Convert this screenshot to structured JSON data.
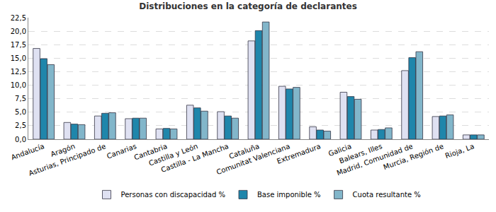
{
  "chart_data": {
    "type": "bar",
    "title": "Distribuciones en la categoría de declarantes",
    "categories": [
      "Andalucía",
      "Aragón",
      "Asturias, Principado de",
      "Canarias",
      "Cantabria",
      "Castilla y León",
      "Castilla - La Mancha",
      "Cataluña",
      "Comunitat Valenciana",
      "Extremadura",
      "Galicia",
      "Balears, Illes",
      "Madrid, Comunidad de",
      "Murcia, Región de",
      "Rioja, La"
    ],
    "series": [
      {
        "name": "Personas con discapacidad %",
        "color": "#dfe1f2",
        "values": [
          16.8,
          3.1,
          4.3,
          3.8,
          1.9,
          6.3,
          5.1,
          18.2,
          9.8,
          2.3,
          8.7,
          1.7,
          12.7,
          4.2,
          0.8
        ]
      },
      {
        "name": "Base imponible %",
        "color": "#1f86ab",
        "values": [
          14.9,
          2.8,
          4.8,
          3.9,
          2.0,
          5.8,
          4.3,
          20.1,
          9.3,
          1.7,
          7.9,
          1.8,
          15.1,
          4.3,
          0.8
        ]
      },
      {
        "name": "Cuota resultante %",
        "color": "#82b6ca",
        "values": [
          13.8,
          2.7,
          4.9,
          3.9,
          1.9,
          5.2,
          3.9,
          21.7,
          9.6,
          1.5,
          7.4,
          2.1,
          16.2,
          4.5,
          0.8
        ]
      }
    ],
    "ylim": [
      0,
      22.5
    ],
    "yticks": [
      {
        "value": 0,
        "label": "0,0"
      },
      {
        "value": 2.5,
        "label": "2,5"
      },
      {
        "value": 5,
        "label": "5,0"
      },
      {
        "value": 7.5,
        "label": "7,5"
      },
      {
        "value": 10,
        "label": "10,0"
      },
      {
        "value": 12.5,
        "label": "12,5"
      },
      {
        "value": 15,
        "label": "15,0"
      },
      {
        "value": 17.5,
        "label": "17,5"
      },
      {
        "value": 20,
        "label": "20,0"
      },
      {
        "value": 22.5,
        "label": "22,5"
      }
    ],
    "grid": true,
    "legend": "bottom"
  }
}
